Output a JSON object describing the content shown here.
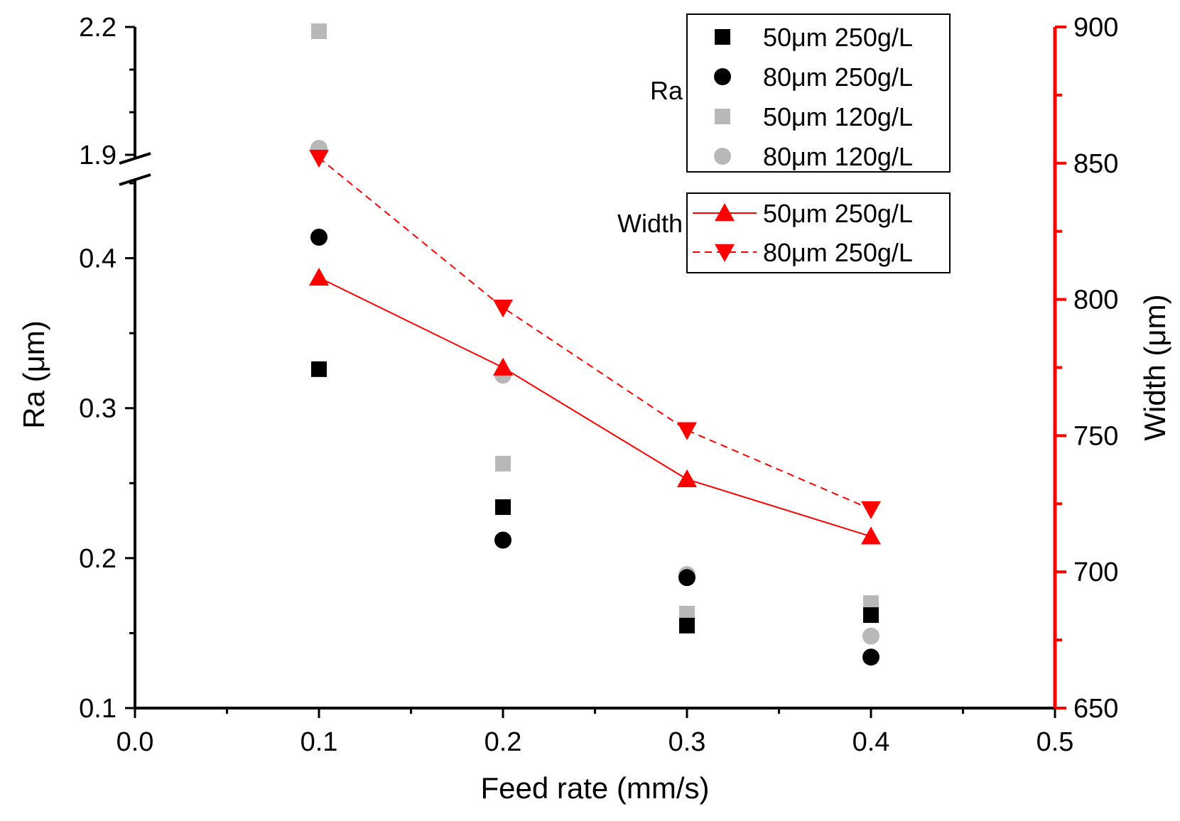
{
  "chart_data": {
    "type": "scatter",
    "x_axis": {
      "label": "Feed rate (mm/s)",
      "range": [
        0.0,
        0.5
      ],
      "ticks": [
        "0.0",
        "0.1",
        "0.2",
        "0.3",
        "0.4",
        "0.5"
      ]
    },
    "left_axis": {
      "label": "Ra (μm)",
      "broken": true,
      "lower_range": [
        0.1,
        0.45
      ],
      "upper_range": [
        1.9,
        2.2
      ],
      "ticks": [
        "0.1",
        "0.2",
        "0.3",
        "0.4",
        "1.9",
        "2.2"
      ],
      "color": "#000000"
    },
    "right_axis": {
      "label": "Width (μm)",
      "range": [
        650,
        900
      ],
      "ticks": [
        "650",
        "700",
        "750",
        "800",
        "850",
        "900"
      ],
      "color": "#ff0000"
    },
    "x": [
      0.1,
      0.2,
      0.3,
      0.4
    ],
    "legend_groups": [
      {
        "title": "Ra",
        "entries": [
          "50μm 250g/L",
          "80μm 250g/L",
          "50μm 120g/L",
          "80μm 120g/L"
        ]
      },
      {
        "title": "Width",
        "entries": [
          "50μm 250g/L",
          "80μm 250g/L"
        ]
      }
    ],
    "series": [
      {
        "name": "50μm 250g/L",
        "group": "Ra",
        "axis": "left",
        "marker": "square",
        "color": "#000000",
        "line": "none",
        "values": [
          0.326,
          0.234,
          0.155,
          0.162
        ]
      },
      {
        "name": "80μm 250g/L",
        "group": "Ra",
        "axis": "left",
        "marker": "circle",
        "color": "#000000",
        "line": "none",
        "values": [
          0.414,
          0.212,
          0.187,
          0.134
        ]
      },
      {
        "name": "50μm 120g/L",
        "group": "Ra",
        "axis": "left",
        "marker": "square",
        "color": "#b8b8b8",
        "line": "none",
        "values": [
          2.19,
          0.263,
          0.163,
          0.17
        ]
      },
      {
        "name": "80μm 120g/L",
        "group": "Ra",
        "axis": "left",
        "marker": "circle",
        "color": "#b8b8b8",
        "line": "none",
        "values": [
          1.915,
          0.322,
          0.189,
          0.148
        ]
      },
      {
        "name": "50μm 250g/L",
        "group": "Width",
        "axis": "right",
        "marker": "triangle-up",
        "color": "#ff0000",
        "line": "solid",
        "values": [
          808,
          775,
          734,
          713
        ]
      },
      {
        "name": "80μm 250g/L",
        "group": "Width",
        "axis": "right",
        "marker": "triangle-down",
        "color": "#ff0000",
        "line": "dashed",
        "values": [
          852,
          797,
          752,
          723
        ]
      }
    ]
  }
}
